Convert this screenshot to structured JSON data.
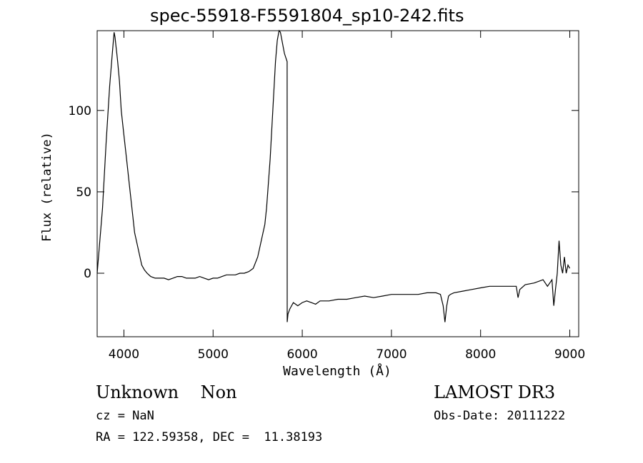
{
  "chart_data": {
    "type": "line",
    "title": "spec-55918-F5591804_sp10-242.fits",
    "xlabel": "Wavelength (Å)",
    "ylabel": "Flux (relative)",
    "xlim": [
      3700,
      9100
    ],
    "ylim": [
      -39,
      149
    ],
    "x_ticks": [
      4000,
      5000,
      6000,
      7000,
      8000,
      9000
    ],
    "y_ticks": [
      0,
      50,
      100
    ],
    "grid": false,
    "series": [
      {
        "x": [
          3700,
          3760,
          3800,
          3840,
          3870,
          3890,
          3900,
          3910,
          3920,
          3930,
          3950,
          3970,
          4000,
          4030,
          4060,
          4080,
          4100,
          4120,
          4140,
          4160,
          4180,
          4200,
          4230,
          4260,
          4300,
          4350,
          4400,
          4450,
          4500,
          4550,
          4600,
          4650,
          4700,
          4750,
          4800,
          4850,
          4900,
          4950,
          5000,
          5050,
          5100,
          5150,
          5200,
          5250,
          5300,
          5350,
          5400,
          5450,
          5500,
          5540,
          5560,
          5580,
          5600,
          5620,
          5640,
          5660,
          5680,
          5700,
          5720,
          5740,
          5755,
          5800,
          5830,
          5831,
          5840,
          5860,
          5880,
          5900,
          5950,
          6000,
          6050,
          6100,
          6150,
          6200,
          6300,
          6400,
          6500,
          6600,
          6700,
          6800,
          6900,
          7000,
          7100,
          7200,
          7300,
          7400,
          7500,
          7550,
          7580,
          7600,
          7620,
          7640,
          7660,
          7700,
          7800,
          7900,
          8000,
          8100,
          8200,
          8300,
          8400,
          8420,
          8440,
          8500,
          8600,
          8700,
          8750,
          8800,
          8820,
          8840,
          8860,
          8880,
          8900,
          8920,
          8940,
          8960,
          8980,
          9000
        ],
        "y": [
          0,
          40,
          80,
          115,
          135,
          148,
          145,
          140,
          135,
          130,
          118,
          100,
          85,
          70,
          55,
          45,
          35,
          25,
          20,
          15,
          10,
          5,
          2,
          0,
          -2,
          -3,
          -3,
          -3,
          -4,
          -3,
          -2,
          -2,
          -3,
          -3,
          -3,
          -2,
          -3,
          -4,
          -3,
          -3,
          -2,
          -1,
          -1,
          -1,
          0,
          0,
          1,
          3,
          10,
          20,
          25,
          30,
          40,
          55,
          70,
          90,
          110,
          130,
          143,
          149,
          148,
          135,
          130,
          -30,
          -25,
          -22,
          -20,
          -18,
          -20,
          -18,
          -17,
          -18,
          -19,
          -17,
          -17,
          -16,
          -16,
          -15,
          -14,
          -15,
          -14,
          -13,
          -13,
          -13,
          -13,
          -12,
          -12,
          -13,
          -20,
          -30,
          -20,
          -14,
          -13,
          -12,
          -11,
          -10,
          -9,
          -8,
          -8,
          -8,
          -8,
          -15,
          -10,
          -7,
          -6,
          -4,
          -8,
          -4,
          -20,
          -10,
          0,
          20,
          5,
          0,
          10,
          0,
          5,
          3
        ]
      }
    ]
  },
  "info": {
    "object": "Unknown    Non",
    "survey": "LAMOST DR3",
    "cz": "cz = NaN",
    "obs_date": "Obs-Date: 20111222",
    "coords": "RA = 122.59358, DEC =  11.38193"
  }
}
